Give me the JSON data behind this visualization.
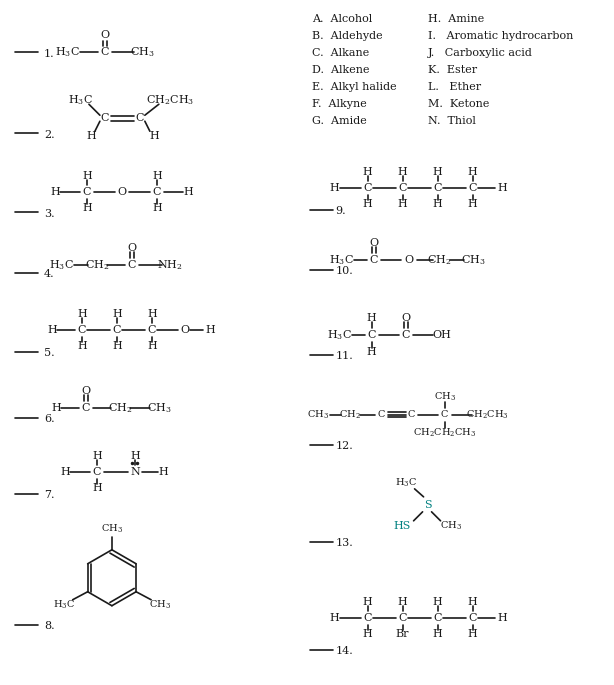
{
  "figsize": [
    6.14,
    6.85
  ],
  "dpi": 100,
  "bg_color": "#ffffff",
  "line_color": "#1a1a1a",
  "text_color": "#1a1a1a",
  "thiol_color": "#008080",
  "key_left": [
    "A.  Alcohol",
    "B.  Aldehyde",
    "C.  Alkane",
    "D.  Alkene",
    "E.  Alkyl halide",
    "F.  Alkyne",
    "G.  Amide"
  ],
  "key_right": [
    "H.  Amine",
    "I.   Aromatic hydrocarbon",
    "J.   Carboxylic acid",
    "K.  Ester",
    "L.   Ether",
    "M.  Ketone",
    "N.  Thiol"
  ]
}
